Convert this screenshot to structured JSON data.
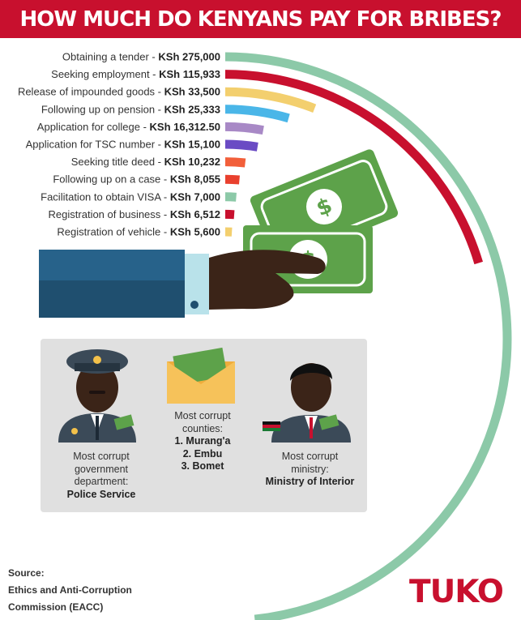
{
  "header": {
    "title": "HOW MUCH DO KENYANS PAY FOR BRIBES?"
  },
  "chart_data": {
    "type": "bar",
    "title": "HOW MUCH DO KENYANS PAY FOR BRIBES?",
    "unit": "KSh",
    "categories": [
      "Obtaining a tender",
      "Seeking employment",
      "Release of impounded goods",
      "Following up on pension",
      "Application for college",
      "Application for TSC number",
      "Seeking title deed",
      "Following up on a case",
      "Facilitation to obtain VISA",
      "Registration of business",
      "Registration of vehicle"
    ],
    "value_labels": [
      "KSh 275,000",
      "KSh 115,933",
      "KSh 33,500",
      "KSh 25,333",
      "KSh 16,312.50",
      "KSh 15,100",
      "KSh 10,232",
      "KSh 8,055",
      "KSh 7,000",
      "KSh 6,512",
      "KSh 5,600"
    ],
    "values": [
      275000,
      115933,
      33500,
      25333,
      16312.5,
      15100,
      10232,
      8055,
      7000,
      6512,
      5600
    ],
    "colors": [
      "#8cc9a8",
      "#c8102e",
      "#f3cf6e",
      "#4ab6e8",
      "#a889c6",
      "#6a4bc4",
      "#f25f3a",
      "#e9402e",
      "#8cc9a8",
      "#c8102e",
      "#f3cf6e"
    ]
  },
  "panel": {
    "police": {
      "line1": "Most corrupt",
      "line2": "government",
      "line3": "department:",
      "answer": "Police Service"
    },
    "counties": {
      "line1": "Most corrupt",
      "line2": "counties:",
      "items": [
        "1. Murang'a",
        "2. Embu",
        "3. Bomet"
      ]
    },
    "ministry": {
      "line1": "Most corrupt",
      "line2": "ministry:",
      "answer": "Ministry of Interior"
    }
  },
  "source": {
    "label": "Source:",
    "line1": "Ethics and Anti-Corruption",
    "line2": "Commission (EACC)"
  },
  "logo": {
    "text": "TUKO"
  }
}
